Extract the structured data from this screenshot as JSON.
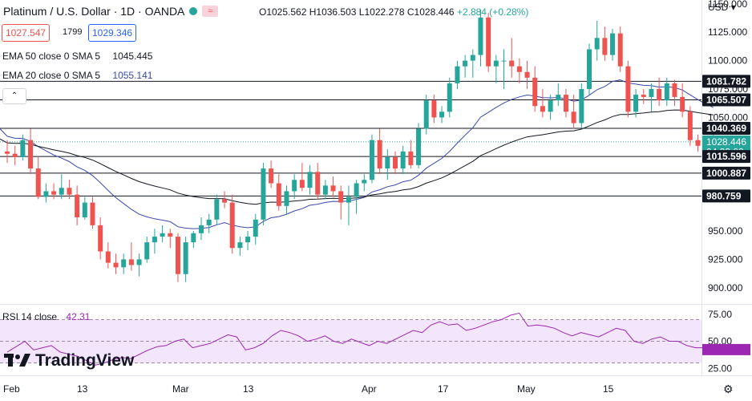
{
  "header": {
    "symbol": "Platinum / U.S. Dollar · 1D · OANDA",
    "open": "O1025.562",
    "high": "H1036.503",
    "low": "L1022.278",
    "close": "C1028.446",
    "change": "+2.884 (+0.28%)",
    "bid": "1027.547",
    "spread": "1799",
    "ask": "1029.346",
    "indicator_icon": "≈"
  },
  "indicators": {
    "ema50_label": "EMA 50 close 0 SMA 5",
    "ema50_value": "1045.445",
    "ema20_label": "EMA 20 close 0 SMA 5",
    "ema20_value": "1055.141",
    "collapse_glyph": "⌃"
  },
  "rsi": {
    "label": "RSI 14 close",
    "value": "42.31"
  },
  "currency": "USD",
  "logo": "TradingView",
  "colors": {
    "up": "#26a69a",
    "down": "#ef5350",
    "ema20": "#3949ab",
    "ema50": "#131722",
    "rsi": "#9c27b0",
    "rsi_band": "#f3e5fb"
  },
  "chart_data": {
    "type": "candlestick",
    "title": "Platinum / U.S. Dollar · 1D · OANDA",
    "y_ticks": [
      "1150.000",
      "1125.000",
      "1100.000",
      "1075.000",
      "1050.000",
      "950.000",
      "925.000",
      "900.000"
    ],
    "x_ticks": [
      "Feb",
      "13",
      "Mar",
      "13",
      "Apr",
      "17",
      "May",
      "15"
    ],
    "ylim": [
      885,
      1152
    ],
    "price_labels": [
      {
        "text": "1081.782",
        "value": 1081.782,
        "style": "dark"
      },
      {
        "text": "1065.507",
        "value": 1065.507,
        "style": "dark"
      },
      {
        "text": "1040.369",
        "value": 1040.369,
        "style": "dark"
      },
      {
        "text": "1028.446",
        "value": 1028.446,
        "style": "teal"
      },
      {
        "text": "04:22:02",
        "value": 1019.5,
        "style": "teal"
      },
      {
        "text": "1015.596",
        "value": 1015.596,
        "style": "dark"
      },
      {
        "text": "1000.887",
        "value": 1000.887,
        "style": "dark"
      },
      {
        "text": "980.759",
        "value": 980.759,
        "style": "dark"
      }
    ],
    "h_lines": [
      1081.782,
      1065.507,
      1040.369,
      1015.596,
      1000.887,
      980.759
    ],
    "current_price": 1028.446,
    "candles": [
      [
        1020,
        1030,
        1010,
        1018
      ],
      [
        1018,
        1025,
        1008,
        1015
      ],
      [
        1015,
        1035,
        1012,
        1030
      ],
      [
        1030,
        1040,
        1000,
        1005
      ],
      [
        1005,
        1015,
        978,
        980
      ],
      [
        980,
        992,
        975,
        985
      ],
      [
        985,
        992,
        978,
        982
      ],
      [
        982,
        1000,
        978,
        988
      ],
      [
        988,
        995,
        978,
        982
      ],
      [
        982,
        990,
        955,
        962
      ],
      [
        962,
        980,
        960,
        975
      ],
      [
        975,
        980,
        952,
        955
      ],
      [
        955,
        962,
        925,
        932
      ],
      [
        932,
        940,
        917,
        922
      ],
      [
        922,
        930,
        912,
        918
      ],
      [
        918,
        930,
        912,
        925
      ],
      [
        925,
        940,
        915,
        920
      ],
      [
        920,
        930,
        910,
        925
      ],
      [
        925,
        945,
        922,
        940
      ],
      [
        940,
        952,
        930,
        945
      ],
      [
        945,
        955,
        940,
        948
      ],
      [
        948,
        952,
        935,
        945
      ],
      [
        945,
        948,
        905,
        912
      ],
      [
        912,
        945,
        905,
        940
      ],
      [
        940,
        950,
        935,
        948
      ],
      [
        948,
        962,
        942,
        955
      ],
      [
        955,
        965,
        948,
        960
      ],
      [
        960,
        982,
        955,
        978
      ],
      [
        978,
        985,
        970,
        975
      ],
      [
        975,
        982,
        930,
        935
      ],
      [
        935,
        945,
        928,
        940
      ],
      [
        940,
        950,
        933,
        945
      ],
      [
        945,
        965,
        938,
        960
      ],
      [
        960,
        1010,
        955,
        1005
      ],
      [
        1005,
        1012,
        988,
        992
      ],
      [
        992,
        1000,
        968,
        972
      ],
      [
        972,
        990,
        965,
        985
      ],
      [
        985,
        1000,
        978,
        995
      ],
      [
        995,
        1010,
        985,
        988
      ],
      [
        988,
        1008,
        982,
        1002
      ],
      [
        1002,
        1010,
        978,
        982
      ],
      [
        982,
        995,
        978,
        990
      ],
      [
        990,
        998,
        980,
        985
      ],
      [
        985,
        990,
        960,
        975
      ],
      [
        975,
        990,
        955,
        980
      ],
      [
        980,
        995,
        965,
        992
      ],
      [
        992,
        1000,
        985,
        995
      ],
      [
        995,
        1035,
        992,
        1030
      ],
      [
        1030,
        1040,
        1000,
        1005
      ],
      [
        1005,
        1022,
        995,
        1015
      ],
      [
        1015,
        1020,
        1000,
        1005
      ],
      [
        1005,
        1025,
        1000,
        1020
      ],
      [
        1020,
        1030,
        1005,
        1008
      ],
      [
        1008,
        1045,
        1005,
        1040
      ],
      [
        1040,
        1070,
        1035,
        1065
      ],
      [
        1065,
        1070,
        1045,
        1050
      ],
      [
        1050,
        1060,
        1045,
        1055
      ],
      [
        1055,
        1085,
        1050,
        1080
      ],
      [
        1080,
        1100,
        1075,
        1095
      ],
      [
        1095,
        1105,
        1085,
        1100
      ],
      [
        1100,
        1110,
        1085,
        1105
      ],
      [
        1105,
        1145,
        1095,
        1138
      ],
      [
        1138,
        1142,
        1090,
        1095
      ],
      [
        1095,
        1105,
        1080,
        1100
      ],
      [
        1100,
        1110,
        1075,
        1100
      ],
      [
        1100,
        1120,
        1085,
        1095
      ],
      [
        1095,
        1102,
        1080,
        1090
      ],
      [
        1090,
        1100,
        1075,
        1085
      ],
      [
        1085,
        1095,
        1055,
        1060
      ],
      [
        1060,
        1075,
        1050,
        1055
      ],
      [
        1055,
        1070,
        1048,
        1065
      ],
      [
        1065,
        1080,
        1060,
        1070
      ],
      [
        1070,
        1075,
        1050,
        1055
      ],
      [
        1055,
        1070,
        1040,
        1045
      ],
      [
        1045,
        1080,
        1040,
        1075
      ],
      [
        1075,
        1115,
        1070,
        1110
      ],
      [
        1110,
        1135,
        1100,
        1120
      ],
      [
        1120,
        1130,
        1100,
        1105
      ],
      [
        1105,
        1128,
        1100,
        1124
      ],
      [
        1124,
        1130,
        1090,
        1095
      ],
      [
        1095,
        1100,
        1050,
        1055
      ],
      [
        1055,
        1075,
        1050,
        1070
      ],
      [
        1070,
        1075,
        1062,
        1068
      ],
      [
        1068,
        1080,
        1055,
        1075
      ],
      [
        1075,
        1085,
        1060,
        1065
      ],
      [
        1065,
        1085,
        1060,
        1080
      ],
      [
        1080,
        1083,
        1060,
        1068
      ],
      [
        1068,
        1080,
        1050,
        1055
      ],
      [
        1055,
        1060,
        1025,
        1030
      ],
      [
        1030,
        1035,
        1020,
        1025
      ],
      [
        1025,
        1032,
        1020,
        1026
      ],
      [
        1026,
        1036,
        1022,
        1028
      ]
    ],
    "rsi_values": [
      40,
      45,
      50,
      42,
      44,
      46,
      40,
      38,
      36,
      32,
      28,
      30,
      33,
      35,
      34,
      38,
      42,
      45,
      46,
      50,
      52,
      44,
      46,
      48,
      52,
      56,
      54,
      42,
      44,
      48,
      55,
      60,
      58,
      55,
      50,
      52,
      55,
      50,
      48,
      52,
      49,
      46,
      50,
      48,
      52,
      56,
      60,
      58,
      65,
      68,
      65,
      66,
      60,
      62,
      65,
      68,
      70,
      74,
      76,
      64,
      65,
      64,
      62,
      58,
      55,
      58,
      56,
      54,
      58,
      62,
      60,
      50,
      48,
      52,
      54,
      50,
      50,
      46,
      44,
      44,
      42
    ],
    "rsi_ylim": [
      20,
      80
    ],
    "rsi_band": [
      30,
      70
    ],
    "rsi_ticks": [
      "75.00",
      "50.00",
      "25.00"
    ]
  }
}
